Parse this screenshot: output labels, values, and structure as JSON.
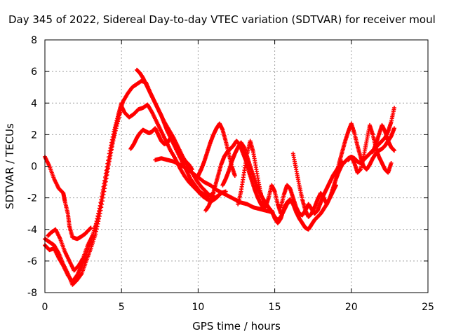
{
  "chart_data": {
    "type": "scatter",
    "title": "Day 345 of 2022, Sidereal Day-to-day VTEC variation (SDTVAR) for receiver moul",
    "xlabel": "GPS time / hours",
    "ylabel": "SDTVAR / TECUs",
    "xlim": [
      0,
      25
    ],
    "ylim": [
      -8,
      8
    ],
    "xticks": [
      0,
      5,
      10,
      15,
      20,
      25
    ],
    "yticks": [
      -8,
      -6,
      -4,
      -2,
      0,
      2,
      4,
      6,
      8
    ],
    "grid": true,
    "marker": "+",
    "color": "#ff0000",
    "series": [
      {
        "name": "trace-1",
        "x": [
          0.0,
          0.3,
          0.6,
          0.9,
          1.2,
          1.3,
          1.5,
          1.6,
          1.8,
          2.1,
          2.3,
          2.6,
          2.8,
          3.0
        ],
        "y": [
          0.6,
          0.0,
          -0.8,
          -1.4,
          -1.7,
          -2.2,
          -3.0,
          -3.8,
          -4.5,
          -4.6,
          -4.5,
          -4.3,
          -4.1,
          -3.9
        ]
      },
      {
        "name": "trace-2",
        "x": [
          0.0,
          0.3,
          0.6,
          0.9,
          1.2,
          1.5,
          1.8,
          2.1,
          2.4,
          2.7,
          3.0,
          3.3,
          3.6,
          3.9,
          4.2,
          4.5,
          4.8,
          5.0,
          5.2,
          5.5,
          5.8,
          6.1,
          6.4,
          6.7,
          7.0,
          7.3,
          7.6,
          7.9,
          8.2,
          8.5,
          8.8,
          9.1,
          9.4,
          9.7,
          10.0,
          10.3,
          10.6,
          10.9,
          11.2,
          11.5,
          11.8
        ],
        "y": [
          -4.6,
          -4.8,
          -5.0,
          -5.5,
          -6.2,
          -6.8,
          -7.5,
          -7.2,
          -6.8,
          -6.0,
          -5.2,
          -4.3,
          -3.0,
          -1.4,
          0.3,
          1.8,
          3.0,
          3.8,
          3.4,
          3.1,
          3.3,
          3.6,
          3.7,
          3.9,
          3.4,
          2.8,
          2.2,
          1.6,
          1.0,
          0.5,
          -0.1,
          -0.6,
          -1.0,
          -1.3,
          -1.6,
          -1.9,
          -2.1,
          -2.2,
          -2.0,
          -1.7,
          -1.6
        ]
      },
      {
        "name": "trace-3",
        "x": [
          0.0,
          0.3,
          0.6,
          0.9,
          1.2,
          1.5,
          1.8,
          2.1,
          2.4,
          2.7,
          3.0,
          3.3,
          3.6,
          3.9,
          4.2,
          4.5,
          4.8,
          5.0
        ],
        "y": [
          -5.0,
          -5.3,
          -5.2,
          -5.8,
          -6.3,
          -6.9,
          -7.3,
          -6.9,
          -6.3,
          -5.6,
          -4.8,
          -3.8,
          -2.5,
          -0.9,
          0.8,
          2.2,
          3.3,
          4.0
        ]
      },
      {
        "name": "trace-4",
        "x": [
          0.2,
          0.4,
          0.7,
          1.0,
          1.3,
          1.6,
          1.9,
          2.2,
          2.5,
          2.8,
          3.1,
          3.4,
          3.7,
          4.0,
          4.3,
          4.6,
          4.9,
          5.1,
          5.4,
          5.7,
          6.0,
          6.3,
          6.6,
          6.9,
          7.2,
          7.5,
          7.8,
          8.1,
          8.4,
          8.7,
          9.0,
          9.3,
          9.6,
          9.9,
          10.2,
          10.5,
          10.8,
          11.1,
          11.4
        ],
        "y": [
          -4.4,
          -4.2,
          -4.0,
          -4.6,
          -5.4,
          -6.0,
          -6.6,
          -6.3,
          -5.8,
          -5.0,
          -4.4,
          -3.5,
          -2.2,
          -0.6,
          1.0,
          2.4,
          3.5,
          4.1,
          4.6,
          5.0,
          5.2,
          5.4,
          5.3,
          4.6,
          4.0,
          3.4,
          2.8,
          2.3,
          1.8,
          1.2,
          0.6,
          0.1,
          -0.4,
          -0.9,
          -1.3,
          -1.6,
          -1.9,
          -2.0,
          -1.8
        ]
      },
      {
        "name": "trace-5",
        "x": [
          5.6,
          5.8,
          6.0,
          6.2,
          6.4,
          6.6,
          6.8,
          7.0,
          7.2,
          7.4,
          7.6,
          7.8,
          8.0,
          8.2,
          8.4,
          8.6,
          8.8,
          9.0,
          9.2,
          9.4,
          9.6
        ],
        "y": [
          1.1,
          1.4,
          1.8,
          2.1,
          2.3,
          2.2,
          2.1,
          2.2,
          2.4,
          2.0,
          1.6,
          1.4,
          1.5,
          1.8,
          1.6,
          1.2,
          0.8,
          0.5,
          0.3,
          0.1,
          -0.2
        ]
      },
      {
        "name": "trace-6",
        "x": [
          6.0,
          6.2,
          6.4,
          6.6,
          6.8,
          7.0,
          7.2,
          7.4,
          7.6,
          7.8,
          8.0,
          8.3,
          8.6,
          8.9,
          9.2,
          9.5,
          9.8,
          10.1,
          10.4,
          10.7,
          11.0
        ],
        "y": [
          6.1,
          5.9,
          5.6,
          5.2,
          4.8,
          4.4,
          4.0,
          3.6,
          3.2,
          2.7,
          2.2,
          1.6,
          1.0,
          0.4,
          -0.2,
          -0.8,
          -1.2,
          -1.6,
          -1.8,
          -1.9,
          -1.7
        ]
      },
      {
        "name": "trace-7",
        "x": [
          7.2,
          7.6,
          8.0,
          8.4,
          8.8,
          9.2,
          9.6,
          10.0,
          10.4,
          10.8,
          11.2,
          11.6,
          12.0,
          12.4,
          12.8,
          13.2,
          13.6,
          14.0,
          14.4,
          14.8
        ],
        "y": [
          0.4,
          0.5,
          0.4,
          0.3,
          0.1,
          -0.1,
          -0.4,
          -0.7,
          -1.0,
          -1.2,
          -1.5,
          -1.7,
          -1.9,
          -2.1,
          -2.3,
          -2.4,
          -2.6,
          -2.7,
          -2.8,
          -2.9
        ]
      },
      {
        "name": "trace-8",
        "x": [
          10.0,
          10.2,
          10.4,
          10.6,
          10.8,
          11.0,
          11.2,
          11.4,
          11.6,
          11.8,
          12.0,
          12.2,
          12.4
        ],
        "y": [
          -0.6,
          -0.2,
          0.3,
          0.9,
          1.5,
          2.0,
          2.4,
          2.7,
          2.3,
          1.6,
          0.8,
          0.0,
          -0.6
        ]
      },
      {
        "name": "trace-9",
        "x": [
          10.5,
          10.7,
          10.9,
          11.1,
          11.3,
          11.5,
          11.7,
          11.9,
          12.1,
          12.3,
          12.5,
          12.7,
          12.9,
          13.1,
          13.3,
          13.5,
          13.7,
          13.9,
          14.1,
          14.3
        ],
        "y": [
          -2.8,
          -2.5,
          -2.0,
          -1.3,
          -0.6,
          0.1,
          0.6,
          0.9,
          1.1,
          1.3,
          1.6,
          1.4,
          0.9,
          0.4,
          -0.3,
          -0.9,
          -1.5,
          -2.0,
          -2.4,
          -2.7
        ]
      },
      {
        "name": "trace-10",
        "x": [
          11.6,
          11.8,
          12.0,
          12.2,
          12.4,
          12.6,
          12.8,
          13.0,
          13.2,
          13.4,
          13.6,
          13.8,
          14.0,
          14.2,
          14.4,
          14.6,
          14.8,
          15.0,
          15.2,
          15.4,
          15.6,
          15.8,
          16.0
        ],
        "y": [
          -1.2,
          -0.8,
          -0.3,
          0.3,
          0.8,
          1.2,
          1.5,
          1.2,
          0.6,
          0.0,
          -0.6,
          -1.2,
          -1.6,
          -2.0,
          -2.3,
          -2.6,
          -2.9,
          -3.2,
          -3.4,
          -3.2,
          -2.8,
          -2.4,
          -2.2
        ]
      },
      {
        "name": "trace-11",
        "x": [
          12.6,
          12.8,
          13.0,
          13.2,
          13.4,
          13.6,
          13.8,
          14.0,
          14.2,
          14.4,
          14.6,
          14.8,
          15.0,
          15.2,
          15.4
        ],
        "y": [
          -2.4,
          -1.6,
          -0.4,
          0.8,
          1.6,
          0.9,
          -0.2,
          -1.3,
          -2.2,
          -2.6,
          -2.0,
          -1.2,
          -1.6,
          -2.4,
          -3.0
        ]
      },
      {
        "name": "trace-12",
        "x": [
          14.8,
          15.0,
          15.2,
          15.4,
          15.6,
          15.8,
          16.0,
          16.2,
          16.4,
          16.6,
          16.8,
          17.0,
          17.2,
          17.4,
          17.6,
          17.8,
          18.0,
          18.2,
          18.4,
          18.6,
          18.8,
          19.0
        ],
        "y": [
          -2.8,
          -3.3,
          -3.6,
          -3.3,
          -2.7,
          -2.3,
          -2.1,
          -2.4,
          -2.9,
          -3.3,
          -3.6,
          -3.9,
          -4.0,
          -3.7,
          -3.4,
          -3.2,
          -3.0,
          -2.7,
          -2.4,
          -2.0,
          -1.6,
          -1.2
        ]
      },
      {
        "name": "trace-13",
        "x": [
          15.4,
          15.6,
          15.8,
          16.0,
          16.2,
          16.4,
          16.6,
          16.8,
          17.0,
          17.2,
          17.4,
          17.6,
          17.8,
          18.0,
          18.2,
          18.4,
          18.6,
          18.8,
          19.0,
          19.2,
          19.4
        ],
        "y": [
          -2.6,
          -1.8,
          -1.2,
          -1.4,
          -2.0,
          -2.6,
          -3.0,
          -3.1,
          -2.8,
          -2.4,
          -2.7,
          -3.0,
          -2.8,
          -2.3,
          -1.8,
          -1.4,
          -1.0,
          -0.6,
          -0.3,
          0.0,
          0.3
        ]
      },
      {
        "name": "trace-14",
        "x": [
          16.2,
          16.4,
          16.6,
          16.8,
          17.0,
          17.2,
          17.4,
          17.6,
          17.8,
          18.0,
          18.2,
          18.4
        ],
        "y": [
          0.8,
          -0.2,
          -1.2,
          -2.1,
          -2.8,
          -3.2,
          -3.0,
          -2.6,
          -2.1,
          -1.7,
          -2.0,
          -2.4
        ]
      },
      {
        "name": "trace-15",
        "x": [
          18.6,
          18.8,
          19.0,
          19.2,
          19.4,
          19.6,
          19.8,
          20.0,
          20.2,
          20.4,
          20.6,
          20.8,
          21.0,
          21.2,
          21.4,
          21.6,
          21.8,
          22.0,
          22.2,
          22.4,
          22.6,
          22.8
        ],
        "y": [
          -2.0,
          -1.4,
          -0.8,
          -0.3,
          0.1,
          0.3,
          0.5,
          0.6,
          0.5,
          0.3,
          0.2,
          0.4,
          0.6,
          0.8,
          1.0,
          1.2,
          1.4,
          1.6,
          1.8,
          2.2,
          2.8,
          3.7
        ]
      },
      {
        "name": "trace-16",
        "x": [
          19.0,
          19.2,
          19.4,
          19.6,
          19.8,
          20.0,
          20.2,
          20.4,
          20.6,
          20.8,
          21.0,
          21.2,
          21.4,
          21.6,
          21.8,
          22.0,
          22.2,
          22.4,
          22.6,
          22.8
        ],
        "y": [
          -0.6,
          0.2,
          0.9,
          1.6,
          2.2,
          2.7,
          2.1,
          1.3,
          0.6,
          0.0,
          -0.2,
          0.1,
          0.5,
          0.8,
          1.0,
          1.1,
          1.3,
          1.6,
          1.9,
          2.4
        ]
      },
      {
        "name": "trace-17",
        "x": [
          19.8,
          20.0,
          20.2,
          20.4,
          20.6,
          20.8,
          21.0,
          21.2,
          21.4,
          21.6,
          21.8,
          22.0,
          22.2,
          22.4,
          22.6
        ],
        "y": [
          0.4,
          0.6,
          0.2,
          -0.4,
          -0.2,
          0.6,
          1.6,
          2.6,
          2.0,
          1.2,
          0.6,
          0.2,
          -0.2,
          -0.4,
          0.2
        ]
      },
      {
        "name": "trace-18",
        "x": [
          21.4,
          21.6,
          21.8,
          22.0,
          22.2,
          22.4,
          22.6,
          22.8
        ],
        "y": [
          0.9,
          1.4,
          2.0,
          2.6,
          2.2,
          1.6,
          1.2,
          1.0
        ]
      }
    ]
  }
}
